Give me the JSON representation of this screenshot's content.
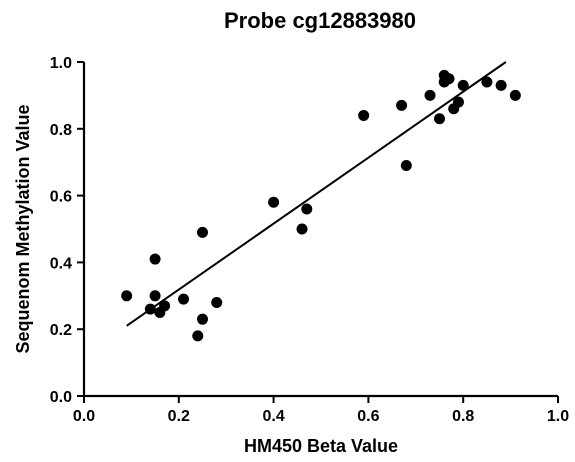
{
  "chart_data": {
    "type": "scatter",
    "title": "Probe cg12883980",
    "xlabel": "HM450 Beta Value",
    "ylabel": "Sequenom Methylation Value",
    "xlim": [
      0.0,
      1.0
    ],
    "ylim": [
      0.0,
      1.0
    ],
    "xticks": [
      "0.0",
      "0.2",
      "0.4",
      "0.6",
      "0.8",
      "1.0"
    ],
    "yticks": [
      "0.0",
      "0.2",
      "0.4",
      "0.6",
      "0.8",
      "1.0"
    ],
    "grid": false,
    "legend": "none",
    "point_color": "#000000",
    "points": [
      {
        "x": 0.09,
        "y": 0.3
      },
      {
        "x": 0.14,
        "y": 0.26
      },
      {
        "x": 0.15,
        "y": 0.3
      },
      {
        "x": 0.15,
        "y": 0.41
      },
      {
        "x": 0.16,
        "y": 0.25
      },
      {
        "x": 0.17,
        "y": 0.27
      },
      {
        "x": 0.21,
        "y": 0.29
      },
      {
        "x": 0.24,
        "y": 0.18
      },
      {
        "x": 0.25,
        "y": 0.23
      },
      {
        "x": 0.25,
        "y": 0.49
      },
      {
        "x": 0.28,
        "y": 0.28
      },
      {
        "x": 0.4,
        "y": 0.58
      },
      {
        "x": 0.46,
        "y": 0.5
      },
      {
        "x": 0.47,
        "y": 0.56
      },
      {
        "x": 0.59,
        "y": 0.84
      },
      {
        "x": 0.67,
        "y": 0.87
      },
      {
        "x": 0.68,
        "y": 0.69
      },
      {
        "x": 0.73,
        "y": 0.9
      },
      {
        "x": 0.75,
        "y": 0.83
      },
      {
        "x": 0.76,
        "y": 0.94
      },
      {
        "x": 0.76,
        "y": 0.96
      },
      {
        "x": 0.77,
        "y": 0.95
      },
      {
        "x": 0.78,
        "y": 0.86
      },
      {
        "x": 0.79,
        "y": 0.88
      },
      {
        "x": 0.8,
        "y": 0.93
      },
      {
        "x": 0.85,
        "y": 0.94
      },
      {
        "x": 0.88,
        "y": 0.93
      },
      {
        "x": 0.91,
        "y": 0.9
      }
    ],
    "fit_line": {
      "x": [
        0.09,
        0.89
      ],
      "y": [
        0.21,
        1.0
      ]
    }
  }
}
